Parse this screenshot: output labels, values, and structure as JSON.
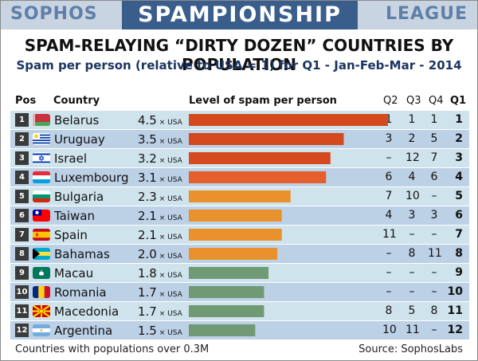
{
  "banner": {
    "left": "SOPHOS",
    "middle": "SPAMPIONSHIP",
    "right": "LEAGUE"
  },
  "title": "SPAM-RELAYING “DIRTY DOZEN” COUNTRIES BY POPULATION",
  "subtitle": "Spam per person (relative to USA = 1) for Q1 - Jan-Feb-Mar - 2014",
  "headers": {
    "pos": "Pos",
    "country": "Country",
    "level": "Level of spam per person",
    "q2": "Q2",
    "q3": "Q3",
    "q4": "Q4",
    "q1": "Q1"
  },
  "unit_suffix": "× USA",
  "colors": {
    "banner_dark": "#3a5e8c",
    "banner_light": "#c9d4e2",
    "row_a": "#cfe3ec",
    "row_b": "#bcd0e6",
    "bar_red": "#d44a1e",
    "bar_orange": "#e9922d",
    "bar_green": "#6f9a74"
  },
  "chart_data": {
    "type": "bar",
    "title": "SPAM-RELAYING “DIRTY DOZEN” COUNTRIES BY POPULATION",
    "subtitle": "Spam per person (relative to USA = 1) for Q1 - Jan-Feb-Mar - 2014",
    "xlabel": "Level of spam per person",
    "xlim": [
      0,
      4.5
    ],
    "rows": [
      {
        "pos": "1",
        "country": "Belarus",
        "value": 4.5,
        "value_label": "4.5",
        "q2": "1",
        "q3": "1",
        "q4": "1",
        "q1": "1",
        "color": "#d44a1e",
        "flag": "belarus"
      },
      {
        "pos": "2",
        "country": "Uruguay",
        "value": 3.5,
        "value_label": "3.5",
        "q2": "3",
        "q3": "2",
        "q4": "5",
        "q1": "2",
        "color": "#d44a1e",
        "flag": "uruguay"
      },
      {
        "pos": "3",
        "country": "Israel",
        "value": 3.2,
        "value_label": "3.2",
        "q2": "–",
        "q3": "12",
        "q4": "7",
        "q1": "3",
        "color": "#d44a1e",
        "flag": "israel"
      },
      {
        "pos": "4",
        "country": "Luxembourg",
        "value": 3.1,
        "value_label": "3.1",
        "q2": "6",
        "q3": "4",
        "q4": "6",
        "q1": "4",
        "color": "#e35f2c",
        "flag": "luxembourg"
      },
      {
        "pos": "5",
        "country": "Bulgaria",
        "value": 2.3,
        "value_label": "2.3",
        "q2": "7",
        "q3": "10",
        "q4": "–",
        "q1": "5",
        "color": "#e9922d",
        "flag": "bulgaria"
      },
      {
        "pos": "6",
        "country": "Taiwan",
        "value": 2.1,
        "value_label": "2.1",
        "q2": "4",
        "q3": "3",
        "q4": "3",
        "q1": "6",
        "color": "#e9922d",
        "flag": "taiwan"
      },
      {
        "pos": "7",
        "country": "Spain",
        "value": 2.1,
        "value_label": "2.1",
        "q2": "11",
        "q3": "–",
        "q4": "–",
        "q1": "7",
        "color": "#e9922d",
        "flag": "spain"
      },
      {
        "pos": "8",
        "country": "Bahamas",
        "value": 2.0,
        "value_label": "2.0",
        "q2": "–",
        "q3": "8",
        "q4": "11",
        "q1": "8",
        "color": "#e9922d",
        "flag": "bahamas"
      },
      {
        "pos": "9",
        "country": "Macau",
        "value": 1.8,
        "value_label": "1.8",
        "q2": "–",
        "q3": "–",
        "q4": "–",
        "q1": "9",
        "color": "#6f9a74",
        "flag": "macau"
      },
      {
        "pos": "10",
        "country": "Romania",
        "value": 1.7,
        "value_label": "1.7",
        "q2": "–",
        "q3": "–",
        "q4": "–",
        "q1": "10",
        "color": "#6f9a74",
        "flag": "romania"
      },
      {
        "pos": "11",
        "country": "Macedonia",
        "value": 1.7,
        "value_label": "1.7",
        "q2": "8",
        "q3": "5",
        "q4": "8",
        "q1": "11",
        "color": "#6f9a74",
        "flag": "macedonia"
      },
      {
        "pos": "12",
        "country": "Argentina",
        "value": 1.5,
        "value_label": "1.5",
        "q2": "10",
        "q3": "11",
        "q4": "–",
        "q1": "12",
        "color": "#6f9a74",
        "flag": "argentina"
      }
    ]
  },
  "footer": {
    "left": "Countries with populations over 0.3M",
    "right": "Source: SophosLabs"
  }
}
